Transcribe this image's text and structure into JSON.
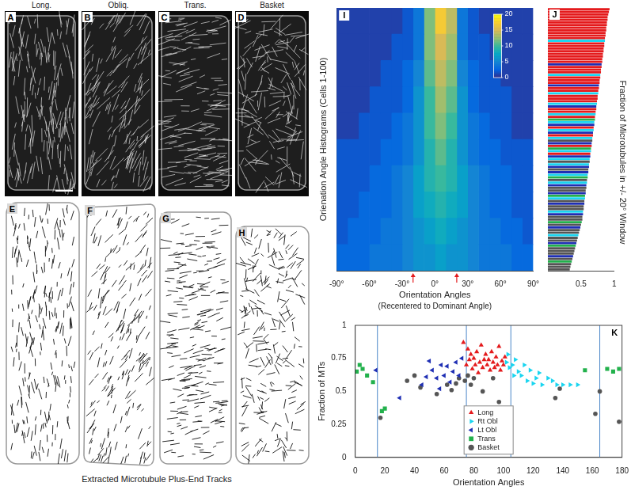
{
  "panel_labels": [
    "A",
    "B",
    "C",
    "D",
    "E",
    "F",
    "G",
    "H",
    "I",
    "J",
    "K"
  ],
  "column_headers": [
    "Long.",
    "Obliq.",
    "Trans.",
    "Basket"
  ],
  "tracks_caption": "Extracted Microtubule Plus-End Tracks",
  "chart_data": [
    {
      "type": "heatmap",
      "ylabel": "Orienation Angle Histograms (Cells 1-100)",
      "xlabel": "Orientation Angles",
      "subtitle": "(Recentered to Dominant Angle)",
      "categories": [
        null,
        null,
        null,
        null,
        null,
        null,
        null,
        null,
        null,
        null
      ],
      "xbins": [
        -90,
        -80,
        -70,
        -60,
        -50,
        -40,
        -30,
        -20,
        -10,
        0,
        10,
        20,
        30,
        40,
        50,
        60,
        70,
        80,
        90
      ],
      "cells": [
        [
          1,
          1,
          1,
          1,
          1,
          1,
          2,
          4,
          12,
          17,
          14,
          4,
          2,
          1,
          1,
          1,
          1,
          1
        ],
        [
          1,
          1,
          1,
          1,
          1,
          2,
          2,
          4,
          12,
          15,
          13,
          4,
          2,
          2,
          1,
          1,
          1,
          1
        ],
        [
          1,
          1,
          1,
          1,
          2,
          2,
          3,
          5,
          11,
          14,
          12,
          5,
          3,
          2,
          2,
          1,
          1,
          1
        ],
        [
          1,
          1,
          1,
          2,
          2,
          2,
          3,
          6,
          10,
          13,
          11,
          6,
          3,
          2,
          2,
          2,
          1,
          1
        ],
        [
          1,
          1,
          2,
          2,
          2,
          3,
          4,
          6,
          10,
          12,
          10,
          6,
          4,
          3,
          2,
          2,
          1,
          1
        ],
        [
          2,
          2,
          2,
          2,
          3,
          3,
          4,
          6,
          9,
          11,
          9,
          6,
          4,
          3,
          3,
          2,
          2,
          2
        ],
        [
          2,
          2,
          2,
          3,
          3,
          4,
          5,
          7,
          9,
          10,
          9,
          7,
          5,
          4,
          3,
          3,
          2,
          2
        ],
        [
          2,
          2,
          3,
          3,
          3,
          4,
          5,
          7,
          8,
          9,
          8,
          7,
          5,
          4,
          3,
          3,
          2,
          2
        ],
        [
          2,
          3,
          3,
          3,
          4,
          4,
          5,
          6,
          7,
          8,
          7,
          6,
          5,
          4,
          4,
          3,
          3,
          2
        ],
        [
          3,
          3,
          3,
          4,
          4,
          4,
          5,
          6,
          6,
          7,
          6,
          6,
          5,
          4,
          4,
          4,
          3,
          3
        ]
      ],
      "xlim": [
        -90,
        90
      ],
      "xticks": [
        {
          "value": -90,
          "label": "-90°"
        },
        {
          "value": -60,
          "label": "-60°"
        },
        {
          "value": -30,
          "label": "-30°"
        },
        {
          "value": 0,
          "label": "0°"
        },
        {
          "value": 30,
          "label": "30°"
        },
        {
          "value": 60,
          "label": "60°"
        },
        {
          "value": 90,
          "label": "90°"
        }
      ],
      "window_markers": [
        -20,
        20
      ],
      "colorbar": {
        "range": [
          0,
          20
        ],
        "ticks": [
          0,
          5,
          10,
          15,
          20
        ]
      },
      "tick_labels": "x",
      "grid": false
    },
    {
      "type": "bar",
      "orientation": "horizontal",
      "title": "Fraction of Microtubules in +/- 20° Window",
      "categories": [
        null,
        null,
        null,
        null,
        null,
        null,
        null,
        null,
        null,
        null,
        null,
        null,
        null,
        null,
        null,
        null,
        null,
        null,
        null,
        null,
        null,
        null,
        null,
        null,
        null,
        null,
        null,
        null,
        null,
        null,
        null,
        null,
        null,
        null,
        null,
        null,
        null,
        null,
        null,
        null,
        null,
        null,
        null,
        null,
        null,
        null,
        null,
        null,
        null,
        null,
        null,
        null,
        null,
        null,
        null,
        null,
        null,
        null,
        null,
        null,
        null,
        null,
        null,
        null,
        null,
        null,
        null,
        null,
        null,
        null,
        null,
        null,
        null,
        null,
        null,
        null,
        null,
        null,
        null,
        null,
        null,
        null,
        null,
        null,
        null,
        null,
        null,
        null,
        null,
        null,
        null,
        null,
        null,
        null,
        null,
        null,
        null,
        null,
        null,
        null
      ],
      "values": [
        0.93,
        0.92,
        0.91,
        0.9,
        0.9,
        0.89,
        0.89,
        0.88,
        0.88,
        0.87,
        0.87,
        0.86,
        0.86,
        0.85,
        0.85,
        0.84,
        0.84,
        0.83,
        0.83,
        0.82,
        0.82,
        0.81,
        0.81,
        0.8,
        0.8,
        0.79,
        0.79,
        0.78,
        0.78,
        0.77,
        0.77,
        0.76,
        0.76,
        0.75,
        0.75,
        0.74,
        0.74,
        0.73,
        0.73,
        0.72,
        0.72,
        0.71,
        0.71,
        0.7,
        0.7,
        0.69,
        0.69,
        0.68,
        0.68,
        0.67,
        0.67,
        0.66,
        0.66,
        0.65,
        0.65,
        0.64,
        0.64,
        0.63,
        0.63,
        0.62,
        0.62,
        0.61,
        0.61,
        0.6,
        0.6,
        0.59,
        0.59,
        0.58,
        0.58,
        0.57,
        0.57,
        0.56,
        0.56,
        0.55,
        0.55,
        0.54,
        0.54,
        0.53,
        0.53,
        0.52,
        0.52,
        0.51,
        0.5,
        0.49,
        0.48,
        0.47,
        0.46,
        0.45,
        0.44,
        0.43,
        0.42,
        0.41,
        0.4,
        0.39,
        0.38,
        0.37,
        0.36,
        0.35,
        0.34,
        0.33
      ],
      "colors": [
        "#e41a1c",
        "#e41a1c",
        "#e41a1c",
        "#e41a1c",
        "#e41a1c",
        "#e41a1c",
        "#e41a1c",
        "#e41a1c",
        "#e41a1c",
        "#e41a1c",
        "#e41a1c",
        "#e41a1c",
        "#1ad5f0",
        "#e41a1c",
        "#e41a1c",
        "#e41a1c",
        "#e41a1c",
        "#e41a1c",
        "#e41a1c",
        "#e41a1c",
        "#e41a1c",
        "#1f2fb4",
        "#e41a1c",
        "#e41a1c",
        "#e41a1c",
        "#1ad5f0",
        "#e41a1c",
        "#e41a1c",
        "#e41a1c",
        "#1f2fb4",
        "#e41a1c",
        "#e41a1c",
        "#1ad5f0",
        "#e41a1c",
        "#e41a1c",
        "#e41a1c",
        "#1ad5f0",
        "#1f2fb4",
        "#e41a1c",
        "#e41a1c",
        "#1ad5f0",
        "#e41a1c",
        "#22b14c",
        "#1ad5f0",
        "#1f2fb4",
        "#e41a1c",
        "#1ad5f0",
        "#1f2fb4",
        "#e41a1c",
        "#1ad5f0",
        "#555555",
        "#1f2fb4",
        "#e41a1c",
        "#22b14c",
        "#1ad5f0",
        "#e41a1c",
        "#1f2fb4",
        "#1ad5f0",
        "#555555",
        "#1ad5f0",
        "#1f2fb4",
        "#555555",
        "#1f2fb4",
        "#1ad5f0",
        "#22b14c",
        "#555555",
        "#1ad5f0",
        "#1f2fb4",
        "#555555",
        "#555555",
        "#1f2fb4",
        "#22b14c",
        "#1ad5f0",
        "#555555",
        "#1f2fb4",
        "#555555",
        "#555555",
        "#1ad5f0",
        "#1f2fb4",
        "#555555",
        "#555555",
        "#22b14c",
        "#555555",
        "#1f2fb4",
        "#555555",
        "#555555",
        "#1ad5f0",
        "#555555",
        "#555555",
        "#1f2fb4",
        "#22b14c",
        "#555555",
        "#555555",
        "#555555",
        "#1f2fb4",
        "#555555",
        "#22b14c",
        "#555555",
        "#555555",
        "#555555"
      ],
      "xlim": [
        0,
        1
      ],
      "xticks": [
        0.5,
        1
      ],
      "tick_labels": "x",
      "grid": false
    },
    {
      "type": "scatter",
      "xlabel": "Orientation Angles",
      "ylabel": "Fraction of MTs",
      "xlim": [
        0,
        180
      ],
      "xticks": [
        0,
        20,
        40,
        60,
        80,
        100,
        120,
        140,
        160,
        180
      ],
      "ylim": [
        0,
        1
      ],
      "yticks": [
        0,
        0.25,
        0.5,
        0.75,
        1
      ],
      "boundaries": [
        15,
        75,
        105,
        165
      ],
      "legend": "bottom",
      "grid": false,
      "series": [
        {
          "name": "Long",
          "color": "#e41a1c",
          "marker": "triangle-up",
          "x": [
            73,
            76,
            78,
            80,
            82,
            84,
            85,
            86,
            88,
            89,
            90,
            91,
            92,
            93,
            94,
            95,
            96,
            97,
            98,
            99,
            100,
            101,
            75,
            79,
            83,
            87,
            81,
            77
          ],
          "values": [
            0.87,
            0.82,
            0.78,
            0.75,
            0.8,
            0.72,
            0.85,
            0.68,
            0.78,
            0.7,
            0.74,
            0.66,
            0.8,
            0.72,
            0.68,
            0.76,
            0.7,
            0.84,
            0.66,
            0.73,
            0.7,
            0.76,
            0.7,
            0.67,
            0.64,
            0.74,
            0.7,
            0.74
          ]
        },
        {
          "name": "Rt Obl",
          "color": "#1ad5f0",
          "marker": "triangle-right",
          "x": [
            102,
            104,
            106,
            108,
            110,
            112,
            114,
            116,
            118,
            120,
            122,
            124,
            126,
            130,
            133,
            136,
            140,
            145,
            150,
            103,
            107
          ],
          "values": [
            0.72,
            0.68,
            0.7,
            0.74,
            0.65,
            0.62,
            0.7,
            0.58,
            0.66,
            0.56,
            0.6,
            0.64,
            0.55,
            0.6,
            0.58,
            0.55,
            0.55,
            0.55,
            0.55,
            0.78,
            0.62
          ]
        },
        {
          "name": "Lt Obl",
          "color": "#1f2fb4",
          "marker": "triangle-left",
          "x": [
            30,
            45,
            50,
            52,
            55,
            57,
            58,
            60,
            62,
            64,
            66,
            68,
            70,
            72,
            14,
            48
          ],
          "values": [
            0.45,
            0.55,
            0.73,
            0.66,
            0.6,
            0.52,
            0.7,
            0.62,
            0.69,
            0.57,
            0.65,
            0.72,
            0.62,
            0.75,
            0.66,
            0.61
          ]
        },
        {
          "name": "Trans",
          "color": "#22b14c",
          "marker": "square",
          "x": [
            1,
            3,
            5,
            8,
            12,
            18,
            20,
            155,
            170,
            174,
            178
          ],
          "values": [
            0.65,
            0.7,
            0.67,
            0.62,
            0.57,
            0.35,
            0.37,
            0.66,
            0.67,
            0.65,
            0.67
          ]
        },
        {
          "name": "Basket",
          "color": "#555555",
          "marker": "circle",
          "x": [
            17,
            35,
            40,
            44,
            55,
            62,
            65,
            68,
            70,
            74,
            76,
            78,
            80,
            86,
            93,
            97,
            135,
            138,
            162,
            165,
            178
          ],
          "values": [
            0.3,
            0.58,
            0.62,
            0.53,
            0.48,
            0.55,
            0.51,
            0.56,
            0.6,
            0.58,
            0.62,
            0.55,
            0.6,
            0.5,
            0.6,
            0.42,
            0.45,
            0.52,
            0.33,
            0.5,
            0.27
          ]
        }
      ]
    }
  ]
}
